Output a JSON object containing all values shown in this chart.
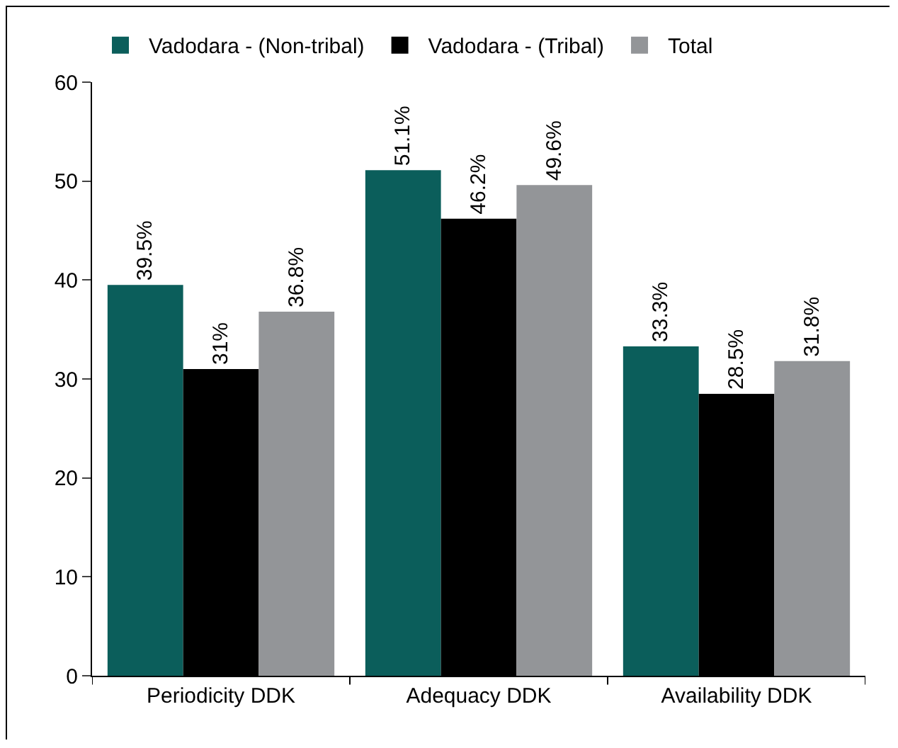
{
  "chart_data": {
    "type": "bar",
    "categories": [
      "Periodicity DDK",
      "Adequacy DDK",
      "Availability DDK"
    ],
    "series": [
      {
        "name": "Vadodara - (Non-tribal)",
        "color": "#0b5e5b",
        "values": [
          39.5,
          51.1,
          33.3
        ],
        "value_labels": [
          "39.5%",
          "51.1%",
          "33.3%"
        ]
      },
      {
        "name": "Vadodara - (Tribal)",
        "color": "#000000",
        "values": [
          31,
          46.2,
          28.5
        ],
        "value_labels": [
          "31%",
          "46.2%",
          "28.5%"
        ]
      },
      {
        "name": "Total",
        "color": "#939598",
        "values": [
          36.8,
          49.6,
          31.8
        ],
        "value_labels": [
          "36.8%",
          "49.6%",
          "31.8%"
        ]
      }
    ],
    "ylim": [
      0,
      60
    ],
    "yticks": [
      0,
      10,
      20,
      30,
      40,
      50,
      60
    ],
    "grid": false,
    "legend": "top left"
  }
}
